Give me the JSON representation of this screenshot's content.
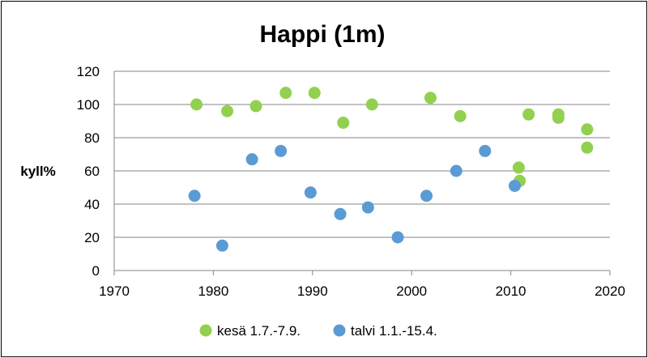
{
  "chart_data": {
    "type": "scatter",
    "title": "Happi (1m)",
    "xlabel": "",
    "ylabel": "kyll%",
    "xlim": [
      1970,
      2020
    ],
    "ylim": [
      0,
      120
    ],
    "x_ticks": [
      1970,
      1980,
      1990,
      2000,
      2010,
      2020
    ],
    "y_ticks": [
      0,
      20,
      40,
      60,
      80,
      100,
      120
    ],
    "grid": "horizontal",
    "legend_position": "bottom",
    "series": [
      {
        "name": "kesä 1.7.-7.9.",
        "color": "#92D050",
        "points": [
          {
            "x": 1978.3,
            "y": 100
          },
          {
            "x": 1981.4,
            "y": 96
          },
          {
            "x": 1984.3,
            "y": 99
          },
          {
            "x": 1987.3,
            "y": 107
          },
          {
            "x": 1990.2,
            "y": 107
          },
          {
            "x": 1993.1,
            "y": 89
          },
          {
            "x": 1996.0,
            "y": 100
          },
          {
            "x": 2001.9,
            "y": 104
          },
          {
            "x": 2004.9,
            "y": 93
          },
          {
            "x": 2010.8,
            "y": 62
          },
          {
            "x": 2010.9,
            "y": 54
          },
          {
            "x": 2011.8,
            "y": 94
          },
          {
            "x": 2014.8,
            "y": 94
          },
          {
            "x": 2014.8,
            "y": 92
          },
          {
            "x": 2017.7,
            "y": 85
          },
          {
            "x": 2017.7,
            "y": 74
          }
        ]
      },
      {
        "name": "talvi 1.1.-15.4.",
        "color": "#5B9BD5",
        "points": [
          {
            "x": 1978.1,
            "y": 45
          },
          {
            "x": 1980.9,
            "y": 15
          },
          {
            "x": 1983.9,
            "y": 67
          },
          {
            "x": 1986.8,
            "y": 72
          },
          {
            "x": 1989.8,
            "y": 47
          },
          {
            "x": 1992.8,
            "y": 34
          },
          {
            "x": 1995.6,
            "y": 38
          },
          {
            "x": 1998.6,
            "y": 20
          },
          {
            "x": 2001.5,
            "y": 45
          },
          {
            "x": 2004.5,
            "y": 60
          },
          {
            "x": 2007.4,
            "y": 72
          },
          {
            "x": 2010.4,
            "y": 51
          }
        ]
      }
    ]
  }
}
